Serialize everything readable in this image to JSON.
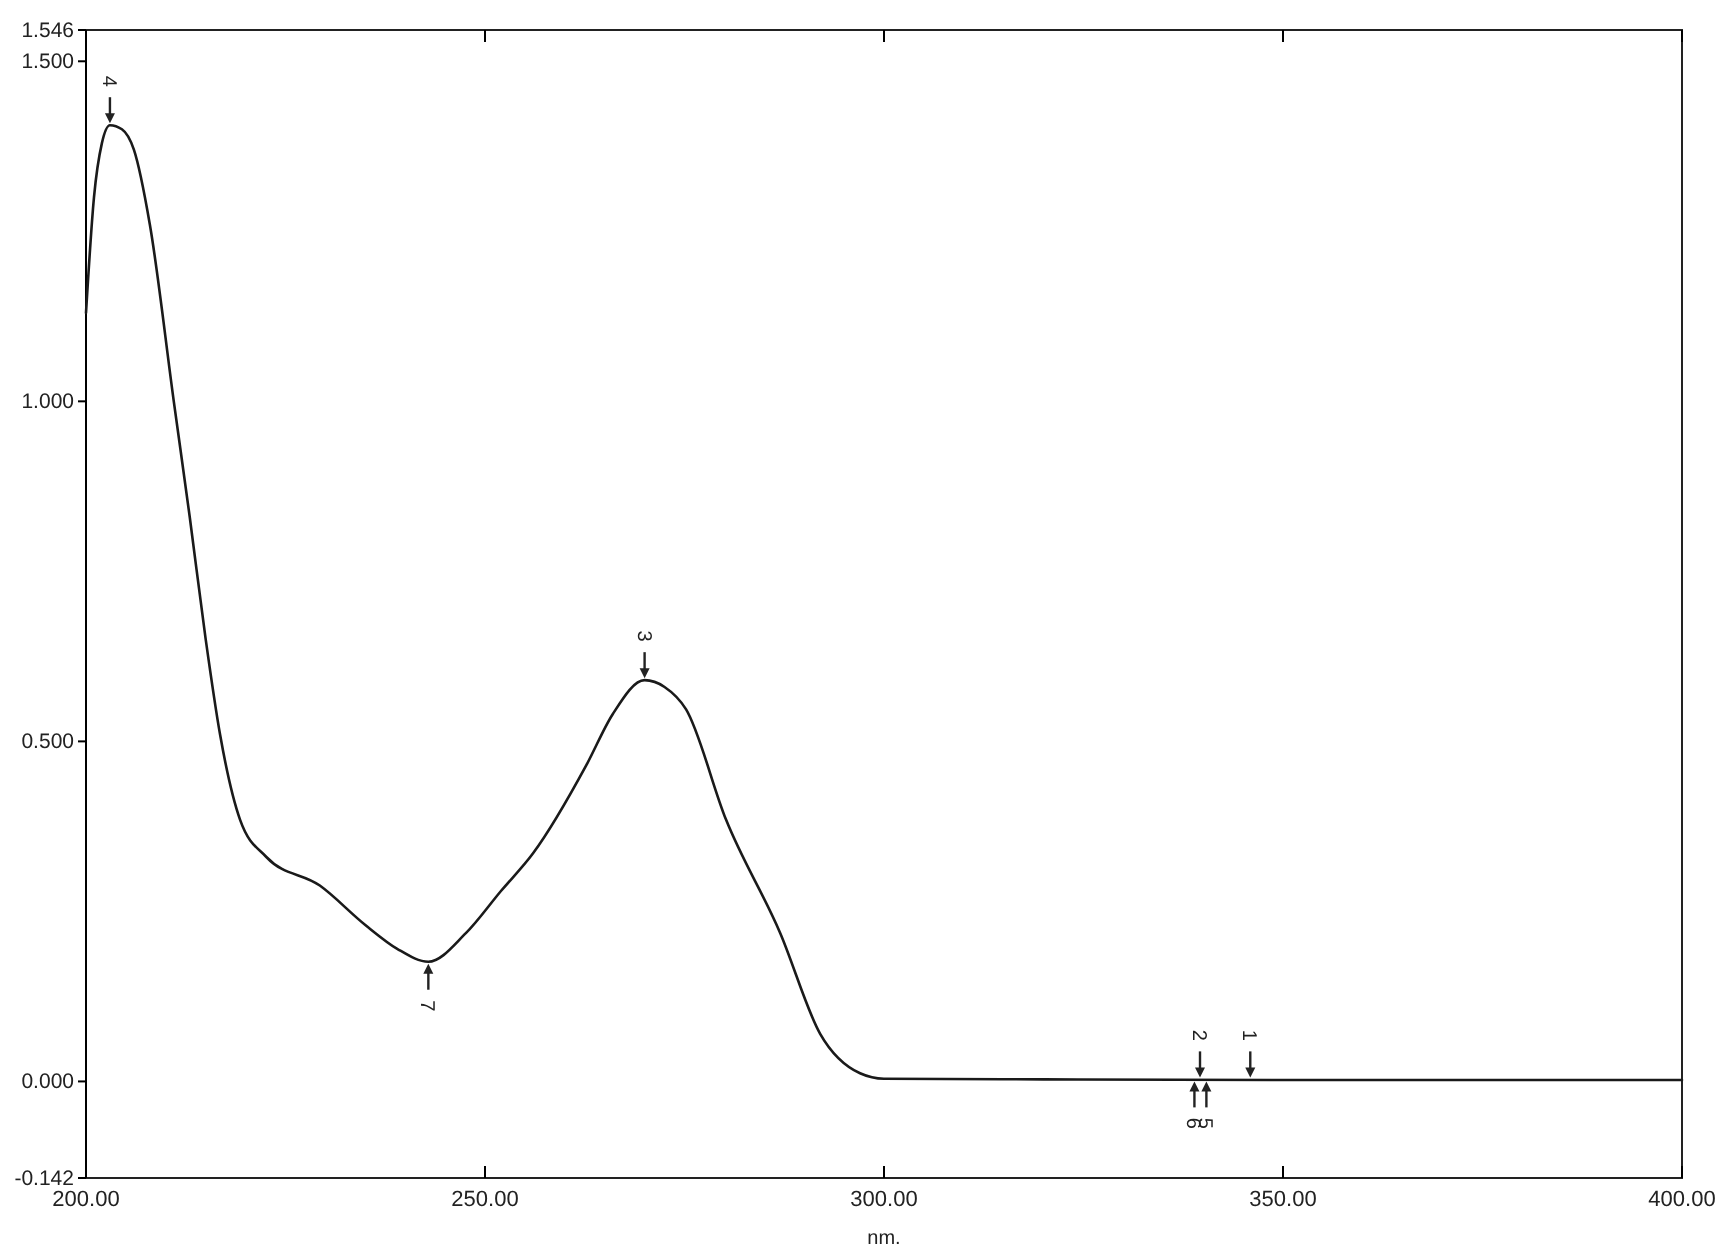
{
  "chart_data": {
    "type": "line",
    "xlabel": "nm.",
    "x": [
      200,
      201,
      202,
      203,
      204.5,
      206,
      208,
      211,
      213,
      215,
      216.8,
      219.3,
      222.6,
      229.3,
      235,
      239,
      242.9,
      247.6,
      252,
      256,
      262.7,
      266,
      270,
      272.5,
      275.2,
      280.2,
      287,
      292,
      297,
      300,
      320,
      350,
      400
    ],
    "series": [
      {
        "color": "#1a1a1a",
        "values": [
          1.13,
          1.3,
          1.38,
          1.406,
          1.4,
          1.37,
          1.26,
          1.0,
          0.83,
          0.65,
          0.51,
          0.385,
          0.33,
          0.288,
          0.23,
          0.195,
          0.176,
          0.218,
          0.28,
          0.335,
          0.465,
          0.54,
          0.59,
          0.58,
          0.547,
          0.385,
          0.218,
          0.07,
          0.012,
          0.004,
          0.003,
          0.002,
          0.002
        ]
      }
    ],
    "xlim": [
      200,
      400
    ],
    "ylim": [
      -0.142,
      1.546
    ],
    "xticks": [
      {
        "value": 200,
        "label": "200.00"
      },
      {
        "value": 250,
        "label": "250.00"
      },
      {
        "value": 300,
        "label": "300.00"
      },
      {
        "value": 350,
        "label": "350.00"
      },
      {
        "value": 400,
        "label": "400.00"
      }
    ],
    "yticks": [
      {
        "value": -0.142,
        "label": "-0.142"
      },
      {
        "value": 0,
        "label": "0.000"
      },
      {
        "value": 0.5,
        "label": "0.500"
      },
      {
        "value": 1,
        "label": "1.000"
      },
      {
        "value": 1.5,
        "label": "1.500"
      },
      {
        "value": 1.546,
        "label": "1.546"
      }
    ],
    "marker": "none",
    "line_style": "solid",
    "annotations": [
      {
        "text": "1",
        "x": 345.9,
        "y": 0.003
      },
      {
        "text": "2",
        "x": 339.6,
        "y": 0.003
      },
      {
        "text": "3",
        "x": 270,
        "y": 0.59
      },
      {
        "text": "4",
        "x": 203,
        "y": 1.406
      },
      {
        "text": "5",
        "x": 340.4,
        "y": 0.003
      },
      {
        "text": "6",
        "x": 338.9,
        "y": 0.003
      },
      {
        "text": "7",
        "x": 242.9,
        "y": 0.176
      }
    ]
  }
}
